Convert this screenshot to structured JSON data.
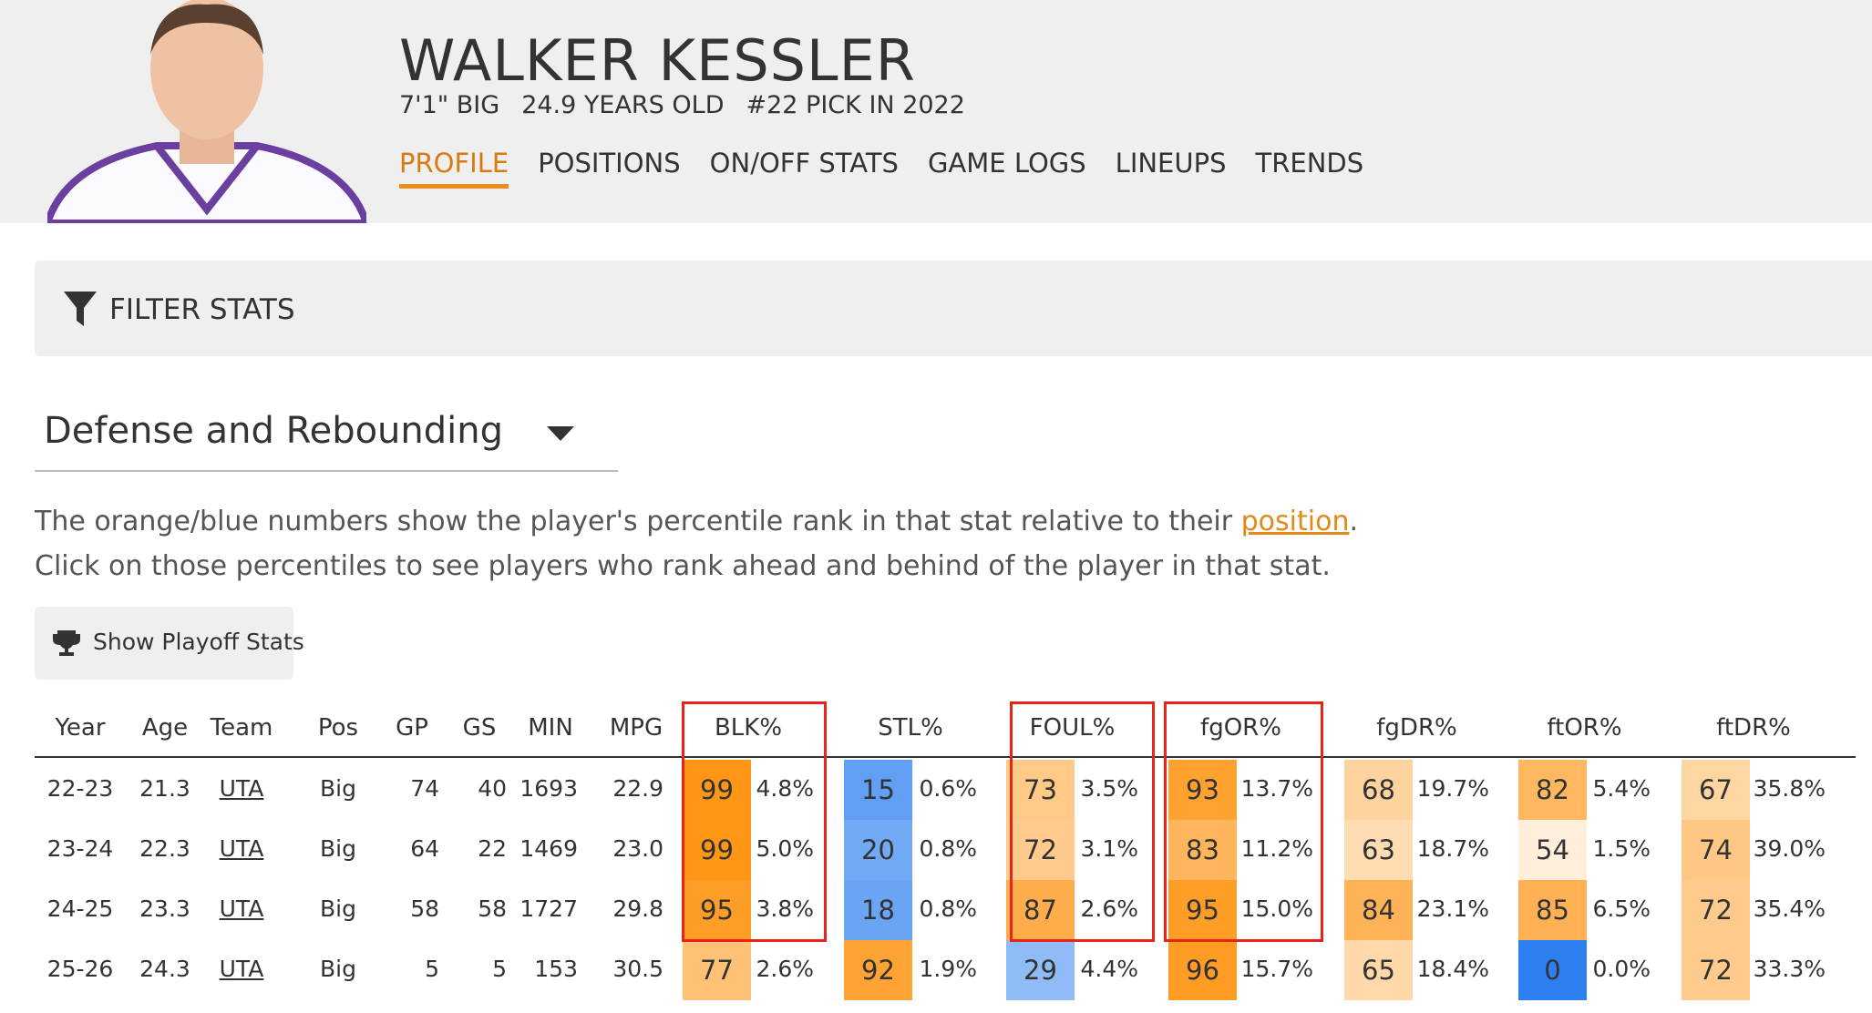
{
  "header": {
    "name": "WALKER KESSLER",
    "bio": [
      "7'1\" BIG",
      "24.9 YEARS OLD",
      "#22 PICK IN 2022"
    ],
    "tabs": [
      "PROFILE",
      "POSITIONS",
      "ON/OFF STATS",
      "GAME LOGS",
      "LINEUPS",
      "TRENDS"
    ]
  },
  "filter": {
    "label": "FILTER STATS"
  },
  "dropdown": {
    "label": "Defense and Rebounding"
  },
  "description": {
    "line1": "The orange/blue numbers show the player's percentile rank in that stat relative to their ",
    "link": "position",
    "line1_end": ".",
    "line2": "Click on those percentiles to see players who rank ahead and behind of the player in that stat."
  },
  "button": {
    "label": "Show Playoff Stats"
  },
  "table": {
    "columns": [
      "Year",
      "Age",
      "Team",
      "Pos",
      "GP",
      "GS",
      "MIN",
      "MPG"
    ],
    "stat_columns": [
      "BLK%",
      "STL%",
      "FOUL%",
      "fgOR%",
      "fgDR%",
      "ftOR%",
      "ftDR%"
    ],
    "rows": [
      {
        "cells": [
          "22-23",
          "21.3",
          "UTA",
          "Big",
          "74",
          "40",
          "1693",
          "22.9"
        ],
        "stats": [
          {
            "pct": 99,
            "value": "4.8%"
          },
          {
            "pct": 15,
            "value": "0.6%"
          },
          {
            "pct": 73,
            "value": "3.5%"
          },
          {
            "pct": 93,
            "value": "13.7%"
          },
          {
            "pct": 68,
            "value": "19.7%"
          },
          {
            "pct": 82,
            "value": "5.4%"
          },
          {
            "pct": 67,
            "value": "35.8%"
          }
        ]
      },
      {
        "cells": [
          "23-24",
          "22.3",
          "UTA",
          "Big",
          "64",
          "22",
          "1469",
          "23.0"
        ],
        "stats": [
          {
            "pct": 99,
            "value": "5.0%"
          },
          {
            "pct": 20,
            "value": "0.8%"
          },
          {
            "pct": 72,
            "value": "3.1%"
          },
          {
            "pct": 83,
            "value": "11.2%"
          },
          {
            "pct": 63,
            "value": "18.7%"
          },
          {
            "pct": 54,
            "value": "1.5%"
          },
          {
            "pct": 74,
            "value": "39.0%"
          }
        ]
      },
      {
        "cells": [
          "24-25",
          "23.3",
          "UTA",
          "Big",
          "58",
          "58",
          "1727",
          "29.8"
        ],
        "stats": [
          {
            "pct": 95,
            "value": "3.8%"
          },
          {
            "pct": 18,
            "value": "0.8%"
          },
          {
            "pct": 87,
            "value": "2.6%"
          },
          {
            "pct": 95,
            "value": "15.0%"
          },
          {
            "pct": 84,
            "value": "23.1%"
          },
          {
            "pct": 85,
            "value": "6.5%"
          },
          {
            "pct": 72,
            "value": "35.4%"
          }
        ]
      },
      {
        "cells": [
          "25-26",
          "24.3",
          "UTA",
          "Big",
          "5",
          "5",
          "153",
          "30.5"
        ],
        "stats": [
          {
            "pct": 77,
            "value": "2.6%"
          },
          {
            "pct": 92,
            "value": "1.9%"
          },
          {
            "pct": 29,
            "value": "4.4%"
          },
          {
            "pct": 96,
            "value": "15.7%"
          },
          {
            "pct": 65,
            "value": "18.4%"
          },
          {
            "pct": 0,
            "value": "0.0%"
          },
          {
            "pct": 72,
            "value": "33.3%"
          }
        ]
      }
    ]
  }
}
